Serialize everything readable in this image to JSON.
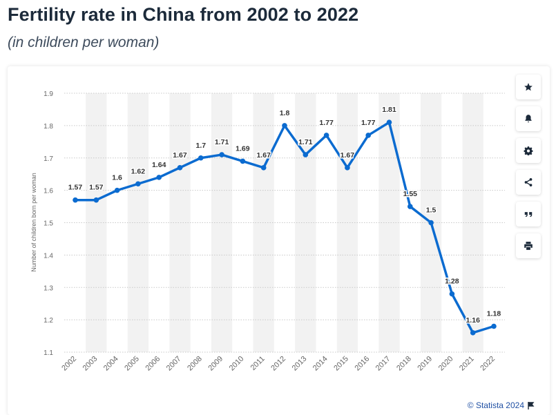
{
  "page": {
    "title": "Fertility rate in China from 2002 to 2022",
    "subtitle": "(in children per woman)"
  },
  "toolbar": [
    {
      "name": "favorite-button",
      "icon": "star-icon"
    },
    {
      "name": "notification-button",
      "icon": "bell-icon"
    },
    {
      "name": "settings-button",
      "icon": "gear-icon"
    },
    {
      "name": "share-button",
      "icon": "share-icon"
    },
    {
      "name": "cite-button",
      "icon": "quote-icon"
    },
    {
      "name": "print-button",
      "icon": "print-icon"
    }
  ],
  "credit": {
    "text": "© Statista 2024",
    "icon": "flag-icon"
  },
  "colors": {
    "line": "#0b6bd0",
    "band": "#f2f2f2",
    "grid": "#c8c8c8",
    "axis_text": "#666666",
    "label_text": "#333333"
  },
  "chart_data": {
    "type": "line",
    "title": "",
    "xlabel": "",
    "ylabel": "Number of children born per woman",
    "categories": [
      "2002",
      "2003",
      "2004",
      "2005",
      "2006",
      "2007",
      "2008",
      "2009",
      "2010",
      "2011",
      "2012",
      "2013",
      "2014",
      "2015",
      "2016",
      "2017",
      "2018",
      "2019",
      "2020",
      "2021",
      "2022"
    ],
    "series": [
      {
        "name": "",
        "values": [
          1.57,
          1.57,
          1.6,
          1.62,
          1.64,
          1.67,
          1.7,
          1.71,
          1.69,
          1.67,
          1.8,
          1.71,
          1.77,
          1.67,
          1.77,
          1.81,
          1.55,
          1.5,
          1.28,
          1.16,
          1.18
        ]
      }
    ],
    "data_labels": [
      "1.57",
      "1.57",
      "1.6",
      "1.62",
      "1.64",
      "1.67",
      "1.7",
      "1.71",
      "1.69",
      "1.67",
      "1.8",
      "1.71",
      "1.77",
      "1.67",
      "1.77",
      "1.81",
      "1.55",
      "1.5",
      "1.28",
      "1.16",
      "1.18"
    ],
    "ylim": [
      1.1,
      1.9
    ],
    "yticks": [
      "1.1",
      "1.2",
      "1.3",
      "1.4",
      "1.5",
      "1.6",
      "1.7",
      "1.8",
      "1.9"
    ],
    "grid": true,
    "alternate_column_bands": true
  }
}
